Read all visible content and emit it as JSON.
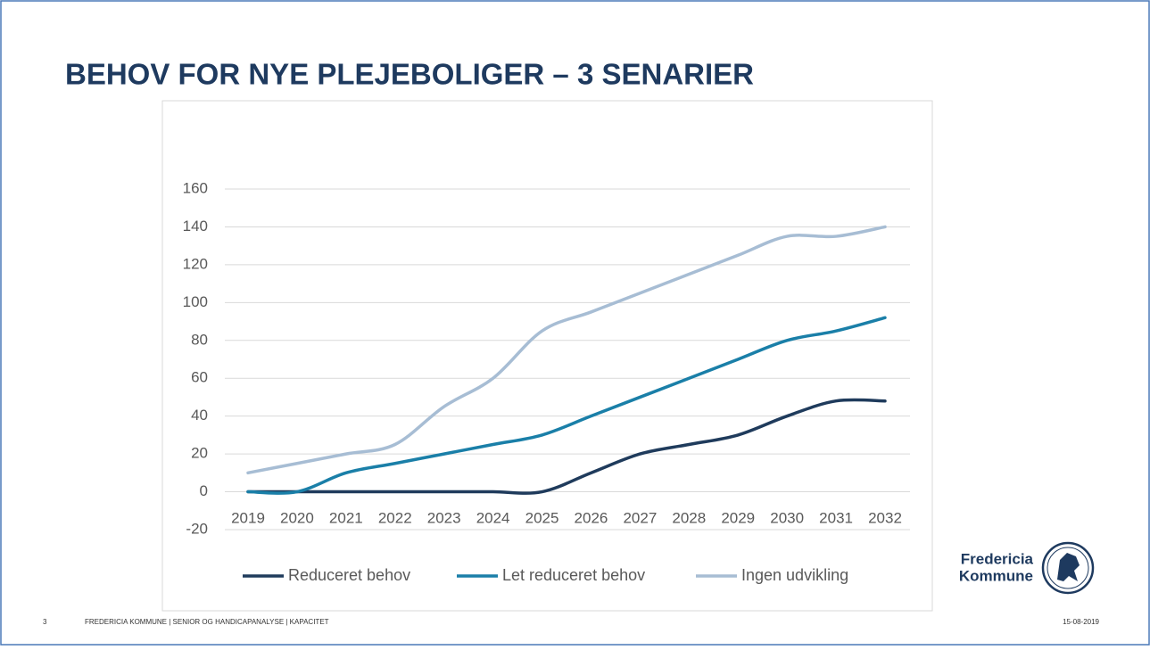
{
  "title": "BEHOV FOR NYE PLEJEBOLIGER – 3 SENARIER",
  "chart_data": {
    "type": "line",
    "categories": [
      "2019",
      "2020",
      "2021",
      "2022",
      "2023",
      "2024",
      "2025",
      "2026",
      "2027",
      "2028",
      "2029",
      "2030",
      "2031",
      "2032"
    ],
    "series": [
      {
        "name": "Reduceret behov",
        "color": "#1f3b5c",
        "values": [
          0,
          0,
          0,
          0,
          0,
          0,
          0,
          10,
          20,
          25,
          30,
          40,
          48,
          48
        ]
      },
      {
        "name": "Let reduceret behov",
        "color": "#1a7fa8",
        "values": [
          0,
          0,
          10,
          15,
          20,
          25,
          30,
          40,
          50,
          60,
          70,
          80,
          85,
          92
        ]
      },
      {
        "name": "Ingen udvikling",
        "color": "#a7bdd4",
        "values": [
          10,
          15,
          20,
          25,
          45,
          60,
          85,
          95,
          105,
          115,
          125,
          135,
          135,
          140
        ]
      }
    ],
    "ylim": [
      -20,
      160
    ],
    "yticks": [
      -20,
      0,
      20,
      40,
      60,
      80,
      100,
      120,
      140,
      160
    ],
    "grid": true,
    "legend": "bottom"
  },
  "footer": {
    "page": "3",
    "text": "FREDERICIA KOMMUNE  |  SENIOR OG HANDICAPANALYSE  |  KAPACITET",
    "date": "15-08-2019"
  },
  "logo": {
    "line1": "Fredericia",
    "line2": "Kommune"
  }
}
